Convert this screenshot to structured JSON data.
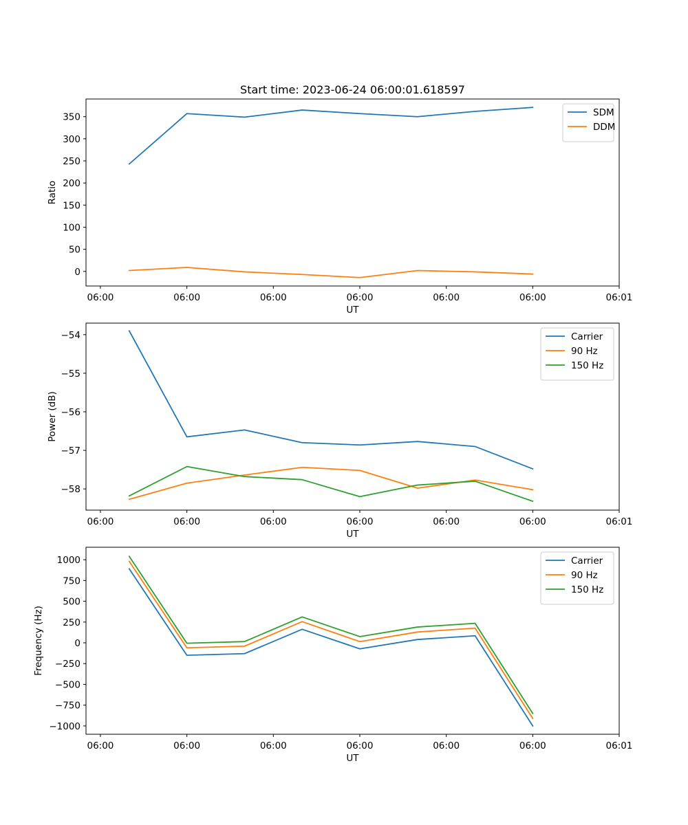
{
  "chart_data": [
    {
      "type": "line",
      "title": "Start time: 2023-06-24 06:00:01.618597",
      "xlabel": "UT",
      "ylabel": "Ratio",
      "x": [
        0,
        1,
        2,
        3,
        4,
        5,
        6,
        7
      ],
      "xlim": [
        -0.75,
        8.5
      ],
      "ylim": [
        -33,
        390
      ],
      "x_ticks": [
        {
          "value": -0.5,
          "label": "06:00"
        },
        {
          "value": 1,
          "label": "06:00"
        },
        {
          "value": 2.5,
          "label": "06:00"
        },
        {
          "value": 4,
          "label": "06:00"
        },
        {
          "value": 5.5,
          "label": "06:00"
        },
        {
          "value": 7,
          "label": "06:00"
        },
        {
          "value": 8.5,
          "label": "06:01"
        }
      ],
      "y_ticks": [
        0,
        50,
        100,
        150,
        200,
        250,
        300,
        350
      ],
      "legend_position": "top-right",
      "series": [
        {
          "name": "SDM",
          "color": "#1f77b4",
          "values": [
            243,
            357,
            349,
            365,
            357,
            350,
            362,
            371
          ]
        },
        {
          "name": "DDM",
          "color": "#ff7f0e",
          "values": [
            2,
            9,
            -1,
            -7,
            -14,
            2,
            -1,
            -6
          ]
        }
      ]
    },
    {
      "type": "line",
      "title": "",
      "xlabel": "UT",
      "ylabel": "Power (dB)",
      "x": [
        0,
        1,
        2,
        3,
        4,
        5,
        6,
        7
      ],
      "xlim": [
        -0.75,
        8.5
      ],
      "ylim": [
        -58.55,
        -53.7
      ],
      "x_ticks": [
        {
          "value": -0.5,
          "label": "06:00"
        },
        {
          "value": 1,
          "label": "06:00"
        },
        {
          "value": 2.5,
          "label": "06:00"
        },
        {
          "value": 4,
          "label": "06:00"
        },
        {
          "value": 5.5,
          "label": "06:00"
        },
        {
          "value": 7,
          "label": "06:00"
        },
        {
          "value": 8.5,
          "label": "06:01"
        }
      ],
      "y_ticks": [
        -58,
        -57,
        -56,
        -55,
        -54
      ],
      "y_tick_labels": [
        "−58",
        "−57",
        "−56",
        "−55",
        "−54"
      ],
      "legend_position": "top-right",
      "series": [
        {
          "name": "Carrier",
          "color": "#1f77b4",
          "values": [
            -53.9,
            -56.65,
            -56.47,
            -56.8,
            -56.86,
            -56.77,
            -56.9,
            -57.48
          ]
        },
        {
          "name": "90 Hz",
          "color": "#ff7f0e",
          "values": [
            -58.27,
            -57.85,
            -57.64,
            -57.44,
            -57.52,
            -57.98,
            -57.77,
            -58.02
          ]
        },
        {
          "name": "150 Hz",
          "color": "#2ca02c",
          "values": [
            -58.18,
            -57.42,
            -57.68,
            -57.76,
            -58.2,
            -57.9,
            -57.8,
            -58.32
          ]
        }
      ]
    },
    {
      "type": "line",
      "title": "",
      "xlabel": "UT",
      "ylabel": "Frequency (Hz)",
      "x": [
        0,
        1,
        2,
        3,
        4,
        5,
        6,
        7
      ],
      "xlim": [
        -0.75,
        8.5
      ],
      "ylim": [
        -1100,
        1150
      ],
      "x_ticks": [
        {
          "value": -0.5,
          "label": "06:00"
        },
        {
          "value": 1,
          "label": "06:00"
        },
        {
          "value": 2.5,
          "label": "06:00"
        },
        {
          "value": 4,
          "label": "06:00"
        },
        {
          "value": 5.5,
          "label": "06:00"
        },
        {
          "value": 7,
          "label": "06:00"
        },
        {
          "value": 8.5,
          "label": "06:01"
        }
      ],
      "y_ticks": [
        -1000,
        -750,
        -500,
        -250,
        0,
        250,
        500,
        750,
        1000
      ],
      "y_tick_labels": [
        "−1000",
        "−750",
        "−500",
        "−250",
        "0",
        "250",
        "500",
        "750",
        "1000"
      ],
      "legend_position": "top-right",
      "series": [
        {
          "name": "Carrier",
          "color": "#1f77b4",
          "values": [
            890,
            -150,
            -130,
            163,
            -72,
            40,
            85,
            -1000
          ]
        },
        {
          "name": "90 Hz",
          "color": "#ff7f0e",
          "values": [
            980,
            -60,
            -40,
            255,
            15,
            130,
            177,
            -910
          ]
        },
        {
          "name": "150 Hz",
          "color": "#2ca02c",
          "values": [
            1040,
            -5,
            15,
            312,
            75,
            190,
            235,
            -850
          ]
        }
      ]
    }
  ]
}
